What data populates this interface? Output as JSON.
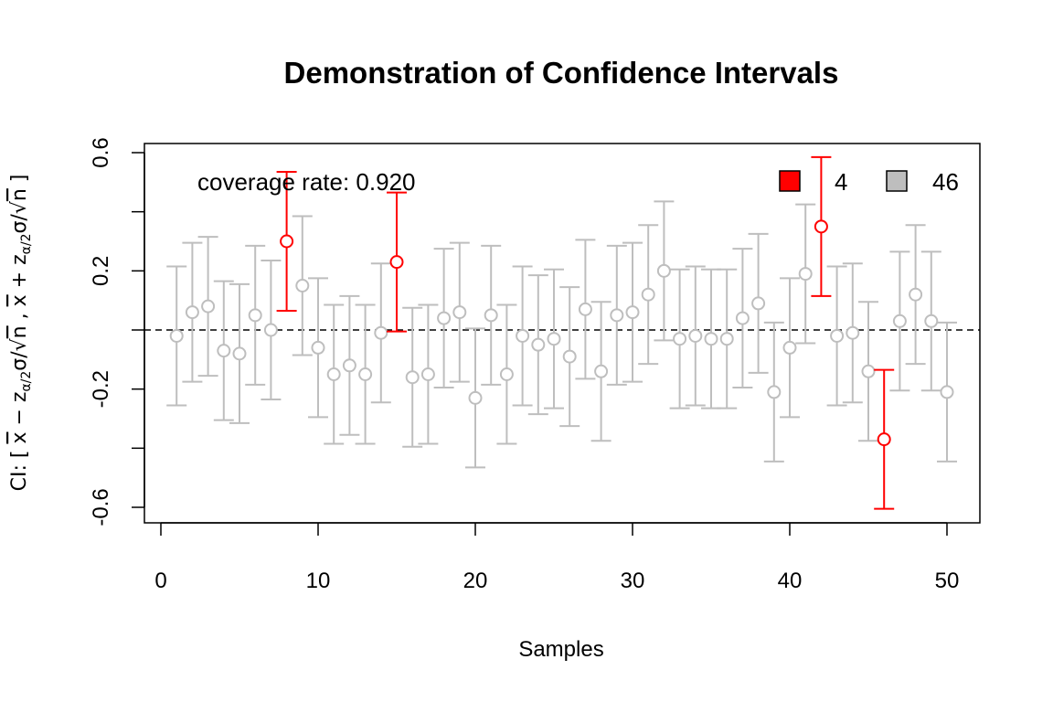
{
  "chart_data": {
    "type": "scatter",
    "title": "Demonstration of Confidence Intervals",
    "xlabel": "Samples",
    "ylabel": "CI: [ x̄ − z_{α/2}σ/√n ,  x̄ + z_{α/2}σ/√n ]",
    "xlim": [
      0,
      50
    ],
    "ylim": [
      -0.6,
      0.6
    ],
    "x_ticks": [
      "0",
      "10",
      "20",
      "30",
      "40",
      "50"
    ],
    "x_tick_values": [
      0,
      10,
      20,
      30,
      40,
      50
    ],
    "y_ticks": [
      "-0.6",
      "-0.2",
      "0.2",
      "0.6"
    ],
    "y_tick_values": [
      -0.6,
      -0.2,
      0.2,
      0.6
    ],
    "y_minor_tick_values": [
      -0.4,
      0,
      0.4
    ],
    "reference_line": 0,
    "annotation": "coverage rate: 0.920",
    "half_width": 0.235,
    "x": [
      1,
      2,
      3,
      4,
      5,
      6,
      7,
      8,
      9,
      10,
      11,
      12,
      13,
      14,
      15,
      16,
      17,
      18,
      19,
      20,
      21,
      22,
      23,
      24,
      25,
      26,
      27,
      28,
      29,
      30,
      31,
      32,
      33,
      34,
      35,
      36,
      37,
      38,
      39,
      40,
      41,
      42,
      43,
      44,
      45,
      46,
      47,
      48,
      49,
      50
    ],
    "means": [
      -0.02,
      0.06,
      0.08,
      -0.07,
      -0.08,
      0.05,
      0.0,
      0.3,
      0.15,
      -0.06,
      -0.15,
      -0.12,
      -0.15,
      -0.01,
      0.23,
      -0.16,
      -0.15,
      0.04,
      0.06,
      -0.23,
      0.05,
      -0.15,
      -0.02,
      -0.05,
      -0.03,
      -0.09,
      0.07,
      -0.14,
      0.05,
      0.06,
      0.12,
      0.2,
      -0.03,
      -0.02,
      -0.03,
      -0.03,
      0.04,
      0.09,
      -0.21,
      -0.06,
      0.19,
      0.35,
      -0.02,
      -0.01,
      -0.14,
      -0.37,
      0.03,
      0.12,
      0.03,
      -0.21
    ],
    "miss": [
      8,
      15,
      42,
      46
    ],
    "colors": {
      "cover": "#bebebe",
      "miss": "#ff0000"
    },
    "legend": {
      "position": "top-right",
      "items": [
        {
          "label": "4",
          "color": "#ff0000"
        },
        {
          "label": "46",
          "color": "#bebebe"
        }
      ]
    }
  }
}
